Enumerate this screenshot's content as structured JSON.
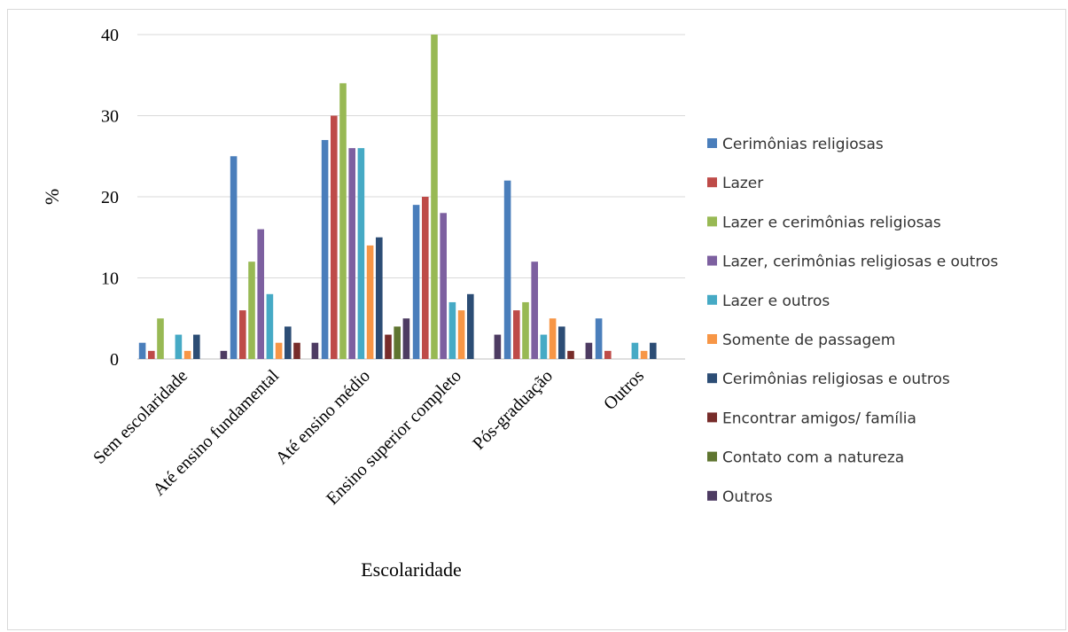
{
  "chart_data": {
    "type": "bar",
    "title": "",
    "xlabel": "Escolaridade",
    "ylabel": "%",
    "ylim": [
      0,
      40
    ],
    "yticks": [
      0,
      10,
      20,
      30,
      40
    ],
    "grid": true,
    "legend_position": "right",
    "categories": [
      "Sem escolaridade",
      "Até ensino fundamental",
      "Até ensino médio",
      "Ensino superior completo",
      "Pós-graduação",
      "Outros"
    ],
    "series": [
      {
        "name": "Cerimônias religiosas",
        "color": "#4a7ebb",
        "values": [
          2,
          25,
          27,
          19,
          22,
          5
        ]
      },
      {
        "name": "Lazer",
        "color": "#be4b48",
        "values": [
          1,
          6,
          30,
          20,
          6,
          1
        ]
      },
      {
        "name": "Lazer e cerimônias religiosas",
        "color": "#98b954",
        "values": [
          5,
          12,
          34,
          40,
          7,
          0
        ]
      },
      {
        "name": "Lazer, cerimônias religiosas e outros",
        "color": "#7d60a0",
        "values": [
          0,
          16,
          26,
          18,
          12,
          0
        ]
      },
      {
        "name": "Lazer e outros",
        "color": "#46aac5",
        "values": [
          3,
          8,
          26,
          7,
          3,
          2
        ]
      },
      {
        "name": "Somente de passagem",
        "color": "#f79646",
        "values": [
          1,
          2,
          14,
          6,
          5,
          1
        ]
      },
      {
        "name": "Cerimônias religiosas e outros",
        "color": "#2c4d75",
        "values": [
          3,
          4,
          15,
          8,
          4,
          2
        ]
      },
      {
        "name": "Encontrar amigos/ família",
        "color": "#772c2a",
        "values": [
          0,
          2,
          3,
          0,
          1,
          0
        ]
      },
      {
        "name": "Contato com a natureza",
        "color": "#5f7530",
        "values": [
          0,
          0,
          4,
          0,
          0,
          0
        ]
      },
      {
        "name": "Outros",
        "color": "#4d3b62",
        "values": [
          1,
          2,
          5,
          3,
          2,
          0
        ]
      }
    ]
  }
}
